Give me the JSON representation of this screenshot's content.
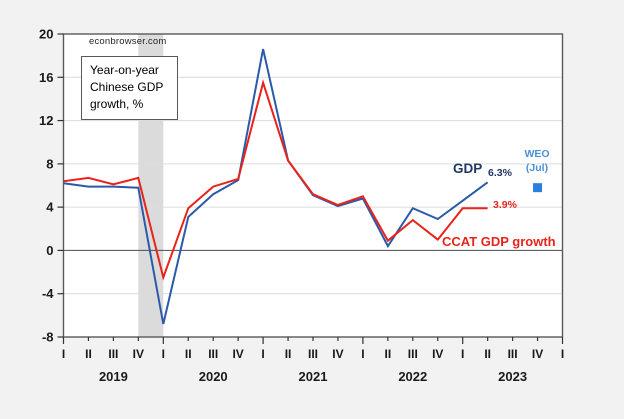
{
  "page_background": "#f2f2f2",
  "watermark": "econbrowser.com",
  "chart_data": {
    "type": "line",
    "title": "Year-on-year Chinese GDP growth, %",
    "xlabel": "",
    "ylabel": "",
    "ylim": [
      -8,
      20
    ],
    "y_ticks": [
      20,
      16,
      12,
      8,
      4,
      0,
      -4,
      -8
    ],
    "grid": true,
    "x_quarter_labels": [
      "I",
      "II",
      "III",
      "IV",
      "I",
      "II",
      "III",
      "IV",
      "I",
      "II",
      "III",
      "IV",
      "I",
      "II",
      "III",
      "IV",
      "I",
      "II",
      "III",
      "IV",
      "I"
    ],
    "year_labels": [
      "2019",
      "2020",
      "2021",
      "2022",
      "2023"
    ],
    "year_center_q": [
      2,
      6,
      10,
      14,
      18
    ],
    "recession_band_q": [
      3,
      4
    ],
    "series": [
      {
        "name": "GDP",
        "color": "#2a5aa8",
        "end_label": "6.3%",
        "start_q": 0,
        "values": [
          6.2,
          5.9,
          5.9,
          5.8,
          -6.8,
          3.1,
          5.2,
          6.5,
          18.6,
          8.3,
          5.1,
          4.1,
          4.8,
          0.4,
          3.9,
          2.9,
          4.6,
          6.3
        ]
      },
      {
        "name": "CCAT GDP growth",
        "color": "#e8231c",
        "end_label": "3.9%",
        "start_q": 0,
        "values": [
          6.4,
          6.7,
          6.1,
          6.7,
          -2.5,
          3.9,
          5.9,
          6.6,
          15.5,
          8.3,
          5.2,
          4.2,
          5.0,
          0.9,
          2.8,
          1.0,
          3.9,
          3.9
        ]
      }
    ],
    "weo_marker": {
      "label_line1": "WEO",
      "label_line2": "(Jul)",
      "q_index": 19,
      "value": 5.8,
      "marker_color": "#2a7de1",
      "text_color": "#4a90d9"
    },
    "colors": {
      "plot_background": "#ffffff",
      "frame": "#595959",
      "gridline": "#dcdcdc",
      "zero_line": "#4d4d4d",
      "recession_band": "#dbdbdb",
      "axis_text": "#1a1a1a",
      "tick": "#333333"
    }
  }
}
